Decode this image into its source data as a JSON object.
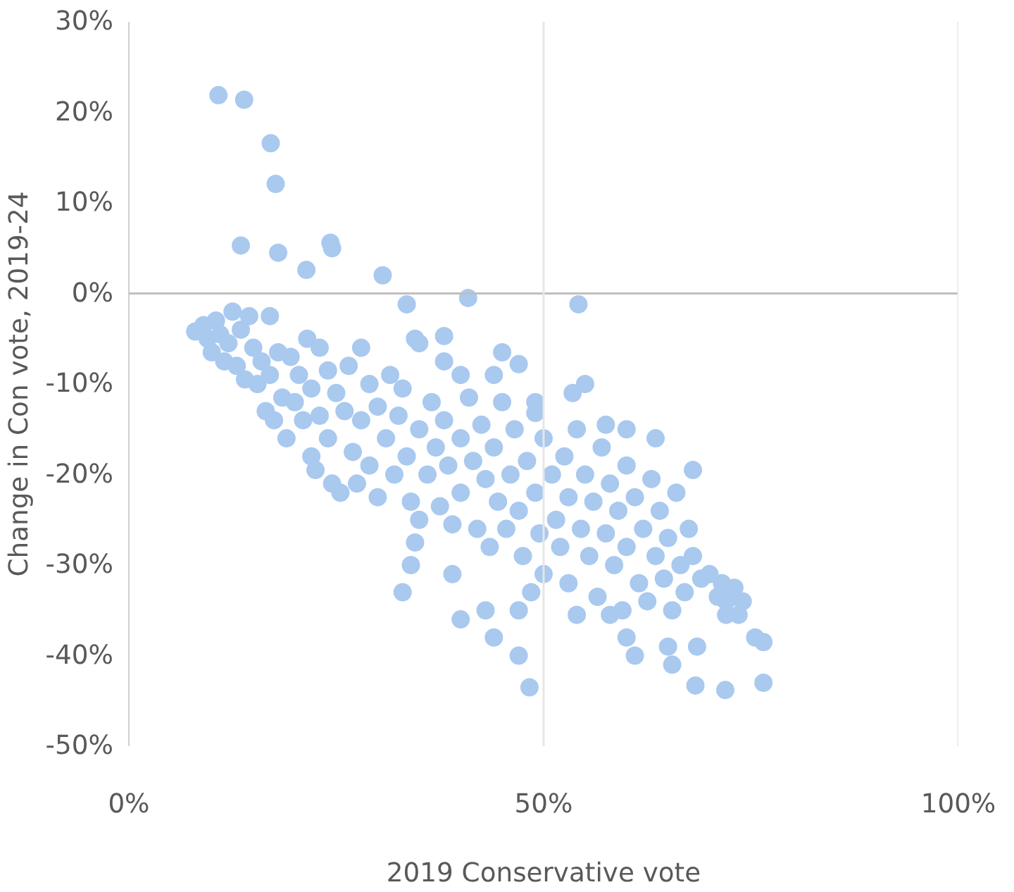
{
  "chart_data": {
    "type": "scatter",
    "xlabel": "2019 Conservative vote",
    "ylabel": "Change in Con vote, 2019-24",
    "xlim": [
      0,
      100
    ],
    "ylim": [
      -50,
      30
    ],
    "xticks": [
      {
        "value": 0,
        "label": "0%"
      },
      {
        "value": 50,
        "label": "50%"
      },
      {
        "value": 100,
        "label": "100%"
      }
    ],
    "yticks": [
      {
        "value": -50,
        "label": "-50%"
      },
      {
        "value": -40,
        "label": "-40%"
      },
      {
        "value": -30,
        "label": "-30%"
      },
      {
        "value": -20,
        "label": "-20%"
      },
      {
        "value": -10,
        "label": "-10%"
      },
      {
        "value": 0,
        "label": "0%"
      },
      {
        "value": 10,
        "label": "10%"
      },
      {
        "value": 20,
        "label": "20%"
      },
      {
        "value": 30,
        "label": "30%"
      }
    ],
    "marker": "circle",
    "ref_lines": [
      {
        "axis": "y",
        "value": 0,
        "label": null,
        "color": "#bfbfbf"
      },
      {
        "axis": "x",
        "value": 50,
        "label": null,
        "color": "#e6e6e6"
      },
      {
        "axis": "x",
        "value": 100,
        "label": null,
        "color": "#e6e6e6"
      }
    ],
    "series": [
      {
        "color": "#a9c9ef",
        "x": [
          10.8,
          13.9,
          17.1,
          17.7,
          13.5,
          18,
          21.4,
          24.3,
          24.5,
          30.6,
          33.5,
          40.9,
          54.2,
          48.3,
          71.9,
          68.3,
          76.5,
          40,
          43,
          47,
          44,
          47,
          39,
          33,
          34,
          34.5,
          61,
          65,
          65.5,
          68.5,
          75.5,
          76.5,
          72,
          73,
          74,
          71.5,
          68,
          63.5,
          60,
          54,
          58,
          40,
          38,
          34.5,
          35,
          38,
          45,
          47,
          44,
          49,
          49,
          55,
          53.5,
          60,
          57.5,
          8,
          9,
          9.5,
          10,
          10.5,
          11,
          11.5,
          12,
          12.5,
          13,
          13.5,
          14,
          14.5,
          15,
          15.5,
          16,
          16.5,
          17,
          17,
          17.5,
          18,
          18.5,
          19,
          19.5,
          20,
          20.5,
          21,
          21.5,
          22,
          22,
          22.5,
          23,
          23,
          24,
          24,
          24.5,
          25,
          25.5,
          26,
          26.5,
          27,
          27.5,
          28,
          28,
          29,
          29,
          30,
          30,
          31,
          31.5,
          32,
          32.5,
          33,
          33.5,
          34,
          35,
          35,
          36,
          36.5,
          37,
          37.5,
          38,
          38.5,
          39,
          40,
          40,
          41,
          41.5,
          42,
          42.5,
          43,
          43.5,
          44,
          44.5,
          45,
          45.5,
          46,
          46.5,
          47,
          47.5,
          48,
          48.5,
          49,
          49.5,
          50,
          50,
          51,
          51.5,
          52,
          52.5,
          53,
          53,
          54,
          54.5,
          55,
          55.5,
          56,
          56.5,
          57,
          57.5,
          58,
          58.5,
          59,
          59.5,
          60,
          60,
          61,
          61.5,
          62,
          62.5,
          63,
          63.5,
          64,
          64.5,
          65,
          65.5,
          66,
          66.5,
          67,
          67.5,
          68,
          69,
          70,
          71,
          72,
          73.5
        ],
        "values": [
          21.9,
          21.4,
          16.6,
          12.1,
          5.3,
          4.5,
          2.6,
          5.6,
          5,
          2,
          -1.2,
          -0.5,
          -1.2,
          -43.5,
          -43.8,
          -43.3,
          -43,
          -36,
          -35,
          -35,
          -38,
          -40,
          -31,
          -33,
          -30,
          -27.5,
          -40,
          -39,
          -41,
          -39,
          -38,
          -38.5,
          -35.5,
          -32.5,
          -34,
          -32,
          -19.5,
          -16,
          -38,
          -35.5,
          -35.5,
          -9,
          -4.7,
          -5,
          -5.5,
          -7.5,
          -6.5,
          -7.8,
          -9,
          -12,
          -13.2,
          -10,
          -11,
          -15,
          -14.5,
          -4.2,
          -3.5,
          -5,
          -6.5,
          -3,
          -4.5,
          -7.5,
          -5.5,
          -2,
          -8,
          -4,
          -9.5,
          -2.5,
          -6,
          -10,
          -7.5,
          -13,
          -2.5,
          -9,
          -14,
          -6.5,
          -11.5,
          -16,
          -7,
          -12,
          -9,
          -14,
          -5,
          -18,
          -10.5,
          -19.5,
          -6,
          -13.5,
          -8.5,
          -16,
          -21,
          -11,
          -22,
          -13,
          -8,
          -17.5,
          -21,
          -6,
          -14,
          -10,
          -19,
          -12.5,
          -22.5,
          -16,
          -9,
          -20,
          -13.5,
          -10.5,
          -18,
          -23,
          -15,
          -25,
          -20,
          -12,
          -17,
          -23.5,
          -14,
          -19,
          -25.5,
          -16,
          -22,
          -11.5,
          -18.5,
          -26,
          -14.5,
          -20.5,
          -28,
          -17,
          -23,
          -12,
          -26,
          -20,
          -15,
          -24,
          -29,
          -18.5,
          -33,
          -22,
          -26.5,
          -16,
          -31,
          -20,
          -25,
          -28,
          -18,
          -22.5,
          -32,
          -15,
          -26,
          -20,
          -29,
          -23,
          -33.5,
          -17,
          -26.5,
          -21,
          -30,
          -24,
          -35,
          -19,
          -28,
          -22.5,
          -32,
          -26,
          -34,
          -20.5,
          -29,
          -24,
          -31.5,
          -27,
          -35,
          -22,
          -30,
          -33,
          -26,
          -29,
          -31.5,
          -31,
          -33.5,
          -34,
          -35.5
        ]
      }
    ]
  }
}
